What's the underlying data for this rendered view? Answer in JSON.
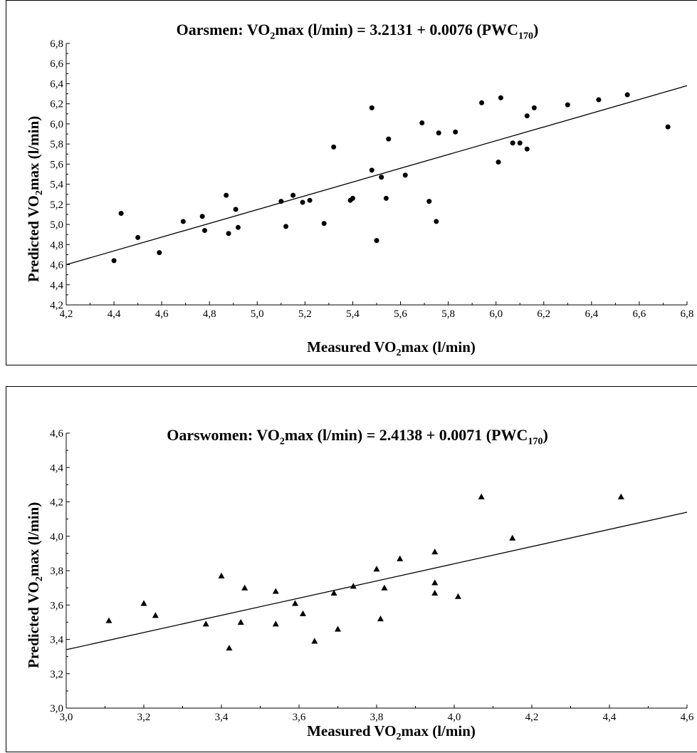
{
  "chart_data": [
    {
      "type": "scatter",
      "title_prefix": "Oarsmen: VO",
      "title_sub": "2",
      "title_suffix": "max (l/min) = 3.2131 + 0.0076 (PWC",
      "title_sub2": "170",
      "title_end": ")",
      "xlabel_prefix": "Measured VO",
      "xlabel_sub": "2",
      "xlabel_suffix": "max (l/min)",
      "ylabel_prefix": "Predicted VO",
      "ylabel_sub": "2",
      "ylabel_suffix": "max (l/min)",
      "marker": "circle",
      "xlim": [
        4.2,
        6.8
      ],
      "ylim": [
        4.2,
        6.8
      ],
      "xticks": [
        "4,2",
        "4,4",
        "4,6",
        "4,8",
        "5,0",
        "5,2",
        "5,4",
        "5,6",
        "5,8",
        "6,0",
        "6,2",
        "6,4",
        "6,6",
        "6,8"
      ],
      "yticks": [
        "4,2",
        "4,4",
        "4,6",
        "4,8",
        "5,0",
        "5,2",
        "5,4",
        "5,6",
        "5,8",
        "6,0",
        "6,2",
        "6,4",
        "6,6",
        "6,8"
      ],
      "regression_line": {
        "x": [
          4.2,
          6.8
        ],
        "y": [
          4.6,
          6.38
        ]
      },
      "x": [
        4.4,
        4.43,
        4.5,
        4.59,
        4.69,
        4.77,
        4.78,
        4.87,
        4.88,
        4.91,
        4.92,
        5.1,
        5.12,
        5.15,
        5.19,
        5.22,
        5.28,
        5.32,
        5.39,
        5.4,
        5.48,
        5.48,
        5.5,
        5.52,
        5.54,
        5.55,
        5.62,
        5.69,
        5.72,
        5.75,
        5.76,
        5.83,
        5.94,
        6.01,
        6.02,
        6.07,
        6.1,
        6.13,
        6.13,
        6.16,
        6.3,
        6.43,
        6.55,
        6.72
      ],
      "y": [
        4.64,
        5.11,
        4.87,
        4.72,
        5.03,
        5.08,
        4.94,
        5.29,
        4.91,
        5.15,
        4.97,
        5.23,
        4.98,
        5.29,
        5.22,
        5.24,
        5.01,
        5.77,
        5.24,
        5.26,
        5.54,
        6.16,
        4.84,
        5.47,
        5.26,
        5.85,
        5.49,
        6.01,
        5.23,
        5.03,
        5.91,
        5.92,
        6.21,
        5.62,
        6.26,
        5.81,
        5.81,
        6.08,
        5.75,
        6.16,
        6.19,
        6.24,
        6.29,
        5.97
      ]
    },
    {
      "type": "scatter",
      "title_prefix": "Oarswomen: VO",
      "title_sub": "2",
      "title_suffix": "max (l/min) = 2.4138 + 0.0071 (PWC",
      "title_sub2": "170",
      "title_end": ")",
      "xlabel_prefix": "Measured VO",
      "xlabel_sub": "2",
      "xlabel_suffix": "max (l/min)",
      "ylabel_prefix": "Predicted VO",
      "ylabel_sub": "2",
      "ylabel_suffix": "max (l/min)",
      "marker": "triangle",
      "xlim": [
        3.0,
        4.6
      ],
      "ylim": [
        3.0,
        4.6
      ],
      "xticks": [
        "3,0",
        "3,2",
        "3,4",
        "3,6",
        "3,8",
        "4,0",
        "4,2",
        "4,4",
        "4,6"
      ],
      "yticks": [
        "3,0",
        "3,2",
        "3,4",
        "3,6",
        "3,8",
        "4,0",
        "4,2",
        "4,4",
        "4,6"
      ],
      "regression_line": {
        "x": [
          3.0,
          4.6
        ],
        "y": [
          3.34,
          4.14
        ]
      },
      "x": [
        3.11,
        3.2,
        3.23,
        3.36,
        3.4,
        3.42,
        3.45,
        3.46,
        3.54,
        3.54,
        3.59,
        3.61,
        3.64,
        3.69,
        3.7,
        3.74,
        3.8,
        3.81,
        3.82,
        3.86,
        3.95,
        3.95,
        3.95,
        4.01,
        4.07,
        4.15,
        4.43
      ],
      "y": [
        3.51,
        3.61,
        3.54,
        3.49,
        3.77,
        3.35,
        3.5,
        3.7,
        3.68,
        3.49,
        3.61,
        3.55,
        3.39,
        3.67,
        3.46,
        3.71,
        3.81,
        3.52,
        3.7,
        3.87,
        3.91,
        3.73,
        3.67,
        3.65,
        4.23,
        3.99,
        4.23
      ]
    }
  ]
}
